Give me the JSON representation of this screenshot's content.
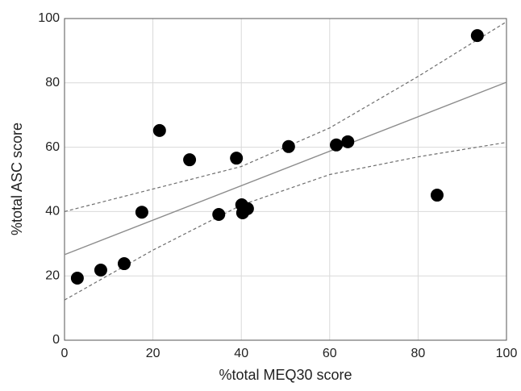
{
  "chart_data": {
    "type": "scatter",
    "x_label": "%total MEQ30 score",
    "y_label": "%total ASC score",
    "xlim": [
      0,
      100
    ],
    "ylim": [
      0,
      100
    ],
    "xticks": [
      0,
      20,
      40,
      60,
      80,
      100
    ],
    "yticks": [
      0,
      20,
      40,
      60,
      80,
      100
    ],
    "grid": true,
    "points": {
      "color": "#000000",
      "x": [
        2.9,
        8.2,
        13.5,
        17.5,
        21.5,
        28.3,
        34.9,
        38.9,
        40.1,
        40.3,
        41.4,
        50.7,
        61.5,
        64.1,
        84.3,
        93.4
      ],
      "y": [
        19.3,
        21.8,
        23.8,
        39.8,
        65.2,
        56.1,
        39.1,
        56.6,
        42.1,
        39.6,
        40.9,
        60.2,
        60.7,
        61.7,
        45.1,
        94.7
      ]
    },
    "fit_line": {
      "color": "#8c8c8c",
      "x": [
        0,
        100
      ],
      "y": [
        26.6,
        80.2
      ]
    },
    "confidence_bands": {
      "color": "#6e6e6e",
      "dashed": true,
      "bands": [
        {
          "x": [
            0,
            20,
            40,
            60,
            80,
            100
          ],
          "y": [
            40,
            47,
            54,
            66,
            82,
            99
          ]
        },
        {
          "x": [
            0,
            20,
            40,
            60,
            80,
            100
          ],
          "y": [
            12.5,
            28,
            42,
            51.5,
            57,
            61.5
          ]
        }
      ]
    }
  }
}
